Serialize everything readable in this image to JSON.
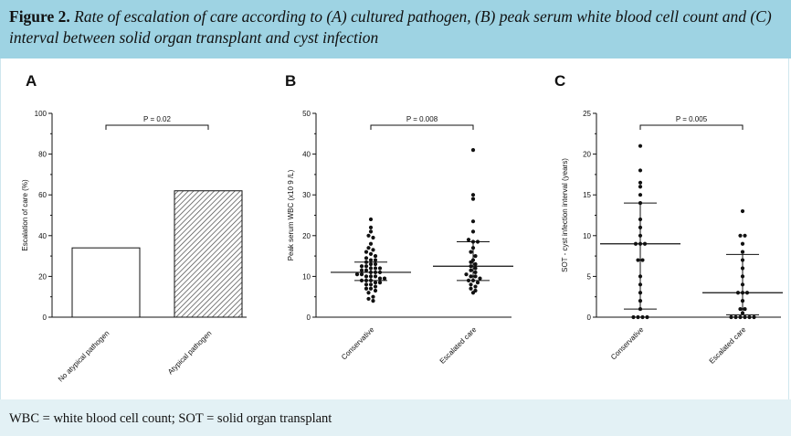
{
  "caption": {
    "label": "Figure 2.",
    "title": "Rate of escalation of care according to (A) cultured pathogen, (B) peak serum white blood cell count and (C) interval between solid organ transplant and cyst infection"
  },
  "footnote": "WBC = white blood cell count; SOT = solid organ transplant",
  "chart_data": [
    {
      "panel": "A",
      "type": "bar",
      "ylabel": "Escalation of care (%)",
      "ylim": [
        0,
        100
      ],
      "yticks": [
        "0",
        "20",
        "40",
        "60",
        "80",
        "100"
      ],
      "categories": [
        "No atypical pathogen",
        "Atypical pathogen"
      ],
      "values": [
        34,
        62
      ],
      "pvalue": "P = 0.02",
      "colors": {
        "bar1": "#ffffff",
        "bar2_hatch": "#555555"
      }
    },
    {
      "panel": "B",
      "type": "scatter",
      "ylabel": "Peak serum WBC (x10 9 /L)",
      "ylim": [
        0,
        50
      ],
      "yticks": [
        "0",
        "10",
        "20",
        "30",
        "40",
        "50"
      ],
      "categories": [
        "Conservative",
        "Escalated care"
      ],
      "series": [
        {
          "values": [
            24,
            22,
            21,
            20,
            19.5,
            18,
            17,
            16.5,
            16,
            15.5,
            15,
            14.5,
            14,
            14,
            13.5,
            13,
            13,
            12.5,
            12.5,
            12,
            12,
            12,
            11.5,
            11.5,
            11,
            11,
            11,
            10.5,
            10.5,
            10,
            10,
            10,
            9.5,
            9.5,
            9,
            9,
            9,
            8.5,
            8.5,
            8,
            8,
            7.5,
            7,
            7,
            6.5,
            6,
            5,
            4.5,
            4
          ],
          "median": 11,
          "q1": 9,
          "q3": 13.5
        },
        {
          "values": [
            41,
            30,
            29,
            23.5,
            21,
            19,
            18.5,
            18.5,
            17,
            16,
            15,
            14,
            13.5,
            13,
            12.5,
            12,
            11.5,
            11,
            10.5,
            10,
            10,
            9.5,
            9,
            9,
            8.5,
            8,
            7.5,
            7,
            6.5,
            6
          ],
          "median": 12.5,
          "q1": 9,
          "q3": 18.5
        }
      ],
      "pvalue": "P = 0.008"
    },
    {
      "panel": "C",
      "type": "scatter",
      "ylabel": "SOT - cyst infection interval (years)",
      "ylim": [
        0,
        25
      ],
      "yticks": [
        "0",
        "5",
        "10",
        "15",
        "20",
        "25"
      ],
      "categories": [
        "Conservative",
        "Escalated care"
      ],
      "series": [
        {
          "values": [
            21,
            18,
            16.5,
            16,
            15,
            14,
            12,
            11,
            10,
            9,
            9,
            9,
            7,
            7,
            5,
            4,
            3,
            2,
            1,
            0,
            0,
            0,
            0
          ],
          "median": 9,
          "q1": 1,
          "q3": 14
        },
        {
          "values": [
            13,
            10,
            10,
            9,
            8,
            7,
            6,
            5,
            4,
            3,
            3,
            3,
            2,
            1,
            1,
            0.5,
            0,
            0,
            0,
            0,
            0,
            0
          ],
          "median": 3,
          "q1": 0.3,
          "q3": 7.7
        }
      ],
      "pvalue": "P = 0.005"
    }
  ]
}
